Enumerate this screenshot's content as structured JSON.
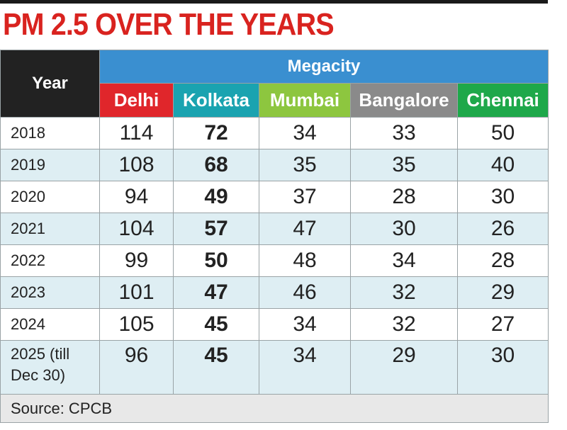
{
  "header": {
    "title": "PM 2.5 OVER THE YEARS"
  },
  "table": {
    "year_header": "Year",
    "group_header": "Megacity",
    "columns": [
      "Delhi",
      "Kolkata",
      "Mumbai",
      "Bangalore",
      "Chennai"
    ],
    "rows": [
      [
        "2018",
        114,
        72,
        34,
        33,
        50
      ],
      [
        "2019",
        108,
        68,
        35,
        35,
        40
      ],
      [
        "2020",
        94,
        49,
        37,
        28,
        30
      ],
      [
        "2021",
        104,
        57,
        47,
        30,
        26
      ],
      [
        "2022",
        99,
        50,
        48,
        34,
        28
      ],
      [
        "2023",
        101,
        47,
        46,
        32,
        29
      ],
      [
        "2024",
        105,
        45,
        34,
        32,
        27
      ],
      [
        "2025 (till Dec 30)",
        96,
        45,
        34,
        29,
        30
      ]
    ]
  },
  "footer": {
    "source": "Source: CPCB"
  }
}
